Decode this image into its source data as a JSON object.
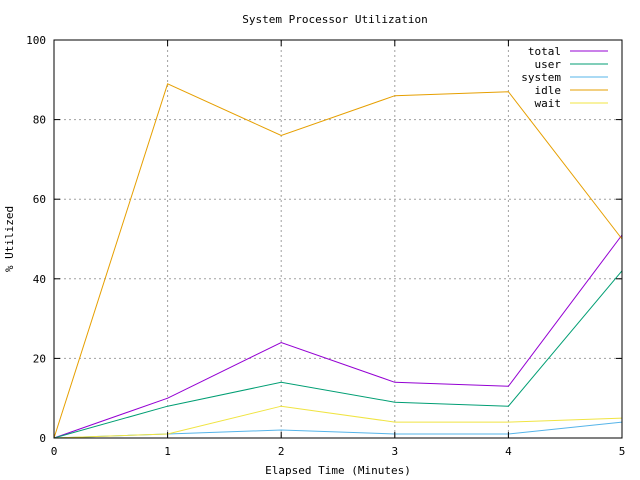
{
  "chart_data": {
    "type": "line",
    "title": "System Processor Utilization",
    "xlabel": "Elapsed Time (Minutes)",
    "ylabel": "% Utilized",
    "x": [
      0,
      1,
      2,
      3,
      4,
      5
    ],
    "xlim": [
      0,
      5
    ],
    "ylim": [
      0,
      100
    ],
    "xticks": [
      "0",
      "1",
      "2",
      "3",
      "4",
      "5"
    ],
    "yticks": [
      "0",
      "20",
      "40",
      "60",
      "80",
      "100"
    ],
    "grid": true,
    "legend_position": "top-right",
    "series": [
      {
        "name": "total",
        "color": "#9400d3",
        "values": [
          0,
          10,
          24,
          14,
          13,
          51
        ]
      },
      {
        "name": "user",
        "color": "#009e73",
        "values": [
          0,
          8,
          14,
          9,
          8,
          42
        ]
      },
      {
        "name": "system",
        "color": "#56b4e9",
        "values": [
          0,
          1,
          2,
          1,
          1,
          4
        ]
      },
      {
        "name": "idle",
        "color": "#e69f00",
        "values": [
          0,
          89,
          76,
          86,
          87,
          50
        ]
      },
      {
        "name": "wait",
        "color": "#f0e442",
        "values": [
          0,
          1,
          8,
          4,
          4,
          5
        ]
      }
    ]
  }
}
